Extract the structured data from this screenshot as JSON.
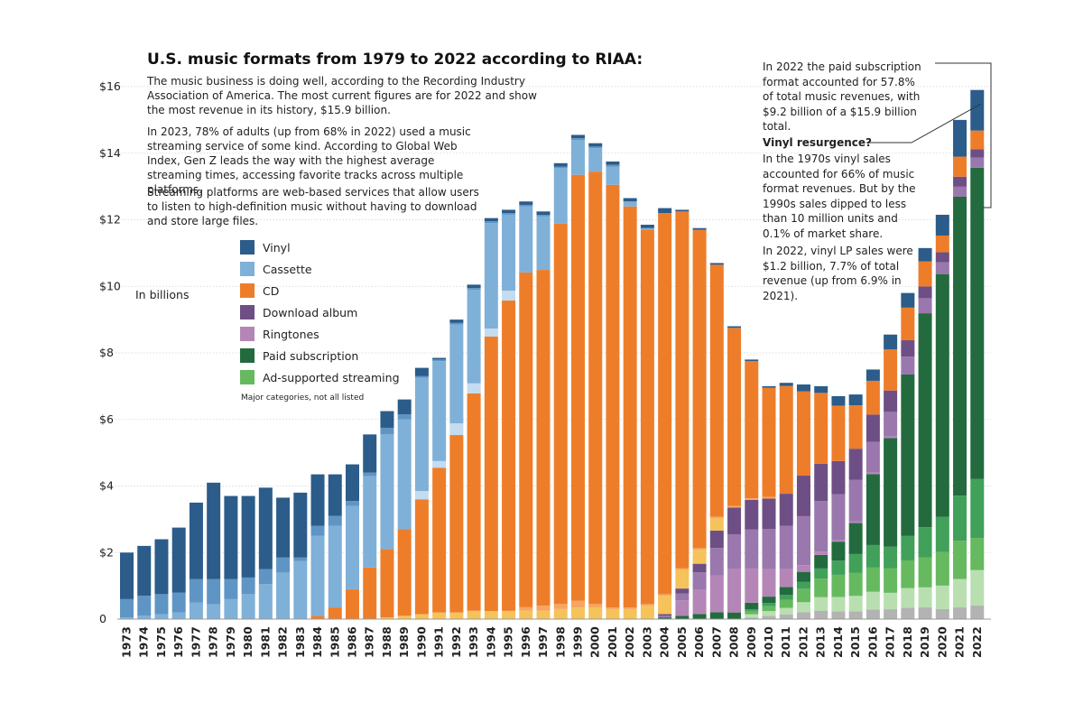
{
  "title": "U.S. music formats from 1979 to 2022 according to RIAA:",
  "paragraphs": [
    "The music business is doing well, according to the Recording Industry Association of America. The most current figures are for 2022 and show the most revenue in its history, $15.9 billion.",
    "In 2023, 78% of adults (up from 68% in 2022) used a music streaming service of some kind. According to Global Web Index, Gen Z leads the way with the highest average streaming times, accessing favorite tracks across multiple platforms.",
    "Streaming platforms are web-based services that allow users to listen to high-definition music without having to download and store large files."
  ],
  "unit_label": "In billions",
  "legend": {
    "items": [
      {
        "label": "Vinyl",
        "color": "#2b5c8a"
      },
      {
        "label": "Cassette",
        "color": "#7fb0d8"
      },
      {
        "label": "CD",
        "color": "#ee7d2a"
      },
      {
        "label": "Download album",
        "color": "#6e4f85"
      },
      {
        "label": "Ringtones",
        "color": "#b486b7"
      },
      {
        "label": "Paid subscription",
        "color": "#236b3e"
      },
      {
        "label": "Ad-supported streaming",
        "color": "#66b95f"
      }
    ],
    "note": "Major categories, not all listed"
  },
  "notes": {
    "paid_subscription": "In 2022 the paid subscription format accounted for 57.8% of total music revenues, with $9.2 billion of a $15.9 billion total.",
    "vinyl_heading": "Vinyl resurgence?",
    "vinyl_1970s": "In the 1970s vinyl sales accounted for 66% of music format revenues. But by the 1990s sales dipped to less than 10 million units and 0.1% of market share.",
    "vinyl_2022": "In 2022, vinyl LP sales were $1.2 billion, 7.7% of total revenue (up from 6.9% in 2021)."
  },
  "chart_data": {
    "type": "bar",
    "stacked": true,
    "title": "U.S. music formats from 1979 to 2022 according to RIAA:",
    "ylabel": "In billions",
    "ylim": [
      0,
      16
    ],
    "yticks": [
      0,
      2,
      4,
      6,
      8,
      10,
      12,
      14,
      16
    ],
    "ytick_labels": [
      "0",
      "$2",
      "$4",
      "$6",
      "$8",
      "$10",
      "$12",
      "$14",
      "$16"
    ],
    "categories": [
      "1973",
      "1974",
      "1975",
      "1976",
      "1977",
      "1978",
      "1979",
      "1980",
      "1981",
      "1982",
      "1983",
      "1984",
      "1985",
      "1986",
      "1987",
      "1988",
      "1989",
      "1990",
      "1991",
      "1992",
      "1993",
      "1994",
      "1995",
      "1996",
      "1997",
      "1998",
      "1999",
      "2000",
      "2001",
      "2002",
      "2003",
      "2004",
      "2005",
      "2006",
      "2007",
      "2008",
      "2009",
      "2010",
      "2011",
      "2012",
      "2013",
      "2014",
      "2015",
      "2016",
      "2017",
      "2018",
      "2019",
      "2020",
      "2021",
      "2022"
    ],
    "totals": [
      2.0,
      2.2,
      2.4,
      2.75,
      3.5,
      4.1,
      3.7,
      3.7,
      3.95,
      3.65,
      3.8,
      4.35,
      4.35,
      4.65,
      5.55,
      6.25,
      6.6,
      7.55,
      7.85,
      9.0,
      10.05,
      12.05,
      12.3,
      12.55,
      12.25,
      13.7,
      14.55,
      14.3,
      13.75,
      12.65,
      11.85,
      12.35,
      12.3,
      11.75,
      10.7,
      8.8,
      7.8,
      7.0,
      7.1,
      7.05,
      7.0,
      6.7,
      6.75,
      7.5,
      8.55,
      9.8,
      11.15,
      12.15,
      15.0,
      15.9
    ],
    "series": [
      {
        "name": "Other",
        "color": "#b3b3b3",
        "values": [
          0,
          0,
          0,
          0,
          0,
          0,
          0,
          0,
          0,
          0,
          0,
          0,
          0,
          0,
          0,
          0,
          0,
          0,
          0,
          0,
          0,
          0,
          0,
          0,
          0,
          0,
          0,
          0,
          0,
          0,
          0,
          0,
          0,
          0,
          0,
          0,
          0.05,
          0.1,
          0.15,
          0.2,
          0.25,
          0.25,
          0.25,
          0.3,
          0.3,
          0.35,
          0.35,
          0.3,
          0.35,
          0.4
        ]
      },
      {
        "name": "Ad-supported streaming light",
        "color": "#b9dfb1",
        "values": [
          0,
          0,
          0,
          0,
          0,
          0,
          0,
          0,
          0,
          0,
          0,
          0,
          0,
          0,
          0,
          0,
          0,
          0,
          0,
          0,
          0,
          0,
          0,
          0,
          0,
          0,
          0,
          0,
          0,
          0,
          0,
          0,
          0,
          0,
          0,
          0,
          0.1,
          0.15,
          0.2,
          0.3,
          0.4,
          0.45,
          0.5,
          0.55,
          0.5,
          0.6,
          0.6,
          0.7,
          0.85,
          1.05
        ]
      },
      {
        "name": "Ad-supported streaming",
        "color": "#66b95f",
        "values": [
          0,
          0,
          0,
          0,
          0,
          0,
          0,
          0,
          0,
          0,
          0,
          0,
          0,
          0,
          0,
          0,
          0,
          0,
          0,
          0,
          0,
          0,
          0,
          0,
          0,
          0,
          0,
          0,
          0,
          0,
          0,
          0,
          0,
          0,
          0,
          0,
          0.1,
          0.15,
          0.25,
          0.4,
          0.55,
          0.7,
          0.75,
          0.75,
          0.75,
          0.85,
          0.9,
          1.0,
          1.15,
          0.95
        ]
      },
      {
        "name": "Paid subscription mid",
        "color": "#41a05a",
        "values": [
          0,
          0,
          0,
          0,
          0,
          0,
          0,
          0,
          0,
          0,
          0,
          0,
          0,
          0,
          0,
          0,
          0,
          0,
          0,
          0,
          0,
          0,
          0,
          0,
          0,
          0,
          0,
          0,
          0,
          0,
          0,
          0,
          0,
          0,
          0,
          0,
          0.05,
          0.1,
          0.15,
          0.2,
          0.3,
          0.45,
          0.6,
          0.7,
          0.65,
          0.75,
          0.9,
          1.05,
          1.35,
          1.75
        ]
      },
      {
        "name": "Paid subscription",
        "color": "#236b3e",
        "values": [
          0,
          0,
          0,
          0,
          0,
          0,
          0,
          0,
          0,
          0,
          0,
          0,
          0,
          0,
          0,
          0,
          0,
          0,
          0,
          0,
          0,
          0,
          0,
          0,
          0,
          0,
          0,
          0,
          0,
          0.0,
          0.0,
          0.05,
          0.1,
          0.15,
          0.2,
          0.2,
          0.2,
          0.2,
          0.25,
          0.3,
          0.4,
          0.6,
          1.0,
          2.2,
          3.3,
          4.95,
          6.4,
          7.25,
          8.95,
          9.2
        ]
      },
      {
        "name": "Ringtones",
        "color": "#b486b7",
        "values": [
          0,
          0,
          0,
          0,
          0,
          0,
          0,
          0,
          0,
          0,
          0,
          0,
          0,
          0,
          0,
          0,
          0,
          0,
          0,
          0,
          0,
          0,
          0,
          0,
          0,
          0,
          0,
          0,
          0,
          0,
          0.0,
          0.0,
          0.45,
          0.7,
          1.05,
          1.3,
          1.05,
          0.85,
          0.55,
          0.2,
          0.1,
          0.05,
          0.05,
          0.05,
          0.05,
          0.0,
          0.0,
          0.0,
          0.0,
          0.0
        ]
      },
      {
        "name": "Download album light",
        "color": "#9a78ad",
        "values": [
          0,
          0,
          0,
          0,
          0,
          0,
          0,
          0,
          0,
          0,
          0,
          0,
          0,
          0,
          0,
          0,
          0,
          0,
          0,
          0,
          0,
          0,
          0,
          0,
          0,
          0,
          0,
          0,
          0,
          0,
          0,
          0.05,
          0.2,
          0.5,
          0.8,
          1.05,
          1.2,
          1.25,
          1.35,
          1.45,
          1.5,
          1.45,
          1.35,
          0.95,
          0.75,
          0.55,
          0.45,
          0.35,
          0.3,
          0.3
        ]
      },
      {
        "name": "Download album",
        "color": "#6e4f85",
        "values": [
          0,
          0,
          0,
          0,
          0,
          0,
          0,
          0,
          0,
          0,
          0,
          0,
          0,
          0,
          0,
          0,
          0,
          0,
          0,
          0,
          0,
          0,
          0,
          0,
          0,
          0,
          0,
          0,
          0,
          0,
          0.0,
          0.05,
          0.15,
          0.25,
          0.5,
          0.8,
          0.9,
          0.95,
          1.0,
          1.2,
          1.1,
          1.05,
          1.0,
          0.85,
          0.65,
          0.5,
          0.35,
          0.3,
          0.3,
          0.25
        ]
      },
      {
        "name": "Music video / other",
        "color": "#f5c35a",
        "values": [
          0,
          0,
          0,
          0,
          0,
          0,
          0,
          0,
          0,
          0,
          0,
          0,
          0,
          0,
          0,
          0.05,
          0.1,
          0.15,
          0.2,
          0.2,
          0.25,
          0.25,
          0.25,
          0.25,
          0.25,
          0.3,
          0.35,
          0.35,
          0.3,
          0.3,
          0.4,
          0.55,
          0.55,
          0.4,
          0.35,
          0.0,
          0.0,
          0.0,
          0.0,
          0.0,
          0.0,
          0.0,
          0.0,
          0.0,
          0.0,
          0.0,
          0.0,
          0.0,
          0.0,
          0.0
        ]
      },
      {
        "name": "CD single / light",
        "color": "#f6a660",
        "values": [
          0,
          0,
          0,
          0,
          0,
          0,
          0,
          0,
          0,
          0,
          0,
          0,
          0,
          0,
          0,
          0,
          0,
          0,
          0,
          0,
          0,
          0,
          0,
          0.1,
          0.15,
          0.15,
          0.2,
          0.1,
          0.05,
          0.05,
          0.05,
          0.05,
          0.05,
          0.05,
          0.05,
          0.05,
          0.05,
          0.05,
          0.0,
          0.0,
          0.0,
          0.0,
          0.0,
          0.0,
          0.0,
          0.0,
          0.0,
          0.0,
          0.0,
          0.0
        ]
      },
      {
        "name": "CD",
        "color": "#ee7d2a",
        "values": [
          0,
          0,
          0,
          0,
          0,
          0,
          0,
          0,
          0,
          0,
          0,
          0.1,
          0.35,
          0.9,
          1.55,
          2.05,
          2.6,
          3.45,
          4.35,
          5.3,
          6.5,
          8.45,
          9.4,
          9.9,
          10.05,
          11.35,
          12.8,
          12.95,
          12.7,
          12.05,
          11.2,
          11.45,
          10.5,
          9.2,
          7.25,
          5.35,
          4.2,
          3.4,
          3.35,
          2.5,
          2.1,
          1.75,
          1.4,
          1.05,
          1.25,
          1.0,
          0.75,
          0.5,
          0.6,
          0.55
        ]
      },
      {
        "name": "Cassette light",
        "color": "#c3dcef",
        "values": [
          0,
          0,
          0,
          0,
          0,
          0,
          0,
          0,
          0,
          0,
          0,
          0,
          0,
          0,
          0,
          0,
          0,
          0.25,
          0.2,
          0.35,
          0.3,
          0.25,
          0.3,
          0.0,
          0.0,
          0.0,
          0.0,
          0.0,
          0.0,
          0.0,
          0,
          0,
          0,
          0,
          0,
          0,
          0,
          0,
          0,
          0,
          0,
          0,
          0,
          0,
          0,
          0,
          0,
          0,
          0,
          0
        ]
      },
      {
        "name": "Cassette",
        "color": "#7fb0d8",
        "values": [
          0.05,
          0.1,
          0.15,
          0.2,
          0.5,
          0.45,
          0.6,
          0.75,
          1.05,
          1.4,
          1.75,
          2.4,
          2.45,
          2.5,
          2.75,
          3.45,
          3.3,
          3.4,
          3.0,
          2.95,
          2.8,
          3.25,
          2.3,
          1.95,
          1.6,
          1.65,
          1.05,
          0.7,
          0.55,
          0.15,
          0.05,
          0,
          0,
          0,
          0,
          0,
          0,
          0,
          0,
          0,
          0,
          0,
          0,
          0,
          0,
          0,
          0,
          0,
          0,
          0
        ]
      },
      {
        "name": "Cassette (8-track) / misc",
        "color": "#5f95c4",
        "values": [
          0.55,
          0.6,
          0.6,
          0.6,
          0.7,
          0.75,
          0.6,
          0.5,
          0.45,
          0.45,
          0.1,
          0.3,
          0.3,
          0.15,
          0.1,
          0.2,
          0.15,
          0.05,
          0.05,
          0.05,
          0.05,
          0.05,
          0.05,
          0.05,
          0.05,
          0.05,
          0.05,
          0.05,
          0.05,
          0.0,
          0.0,
          0.0,
          0.0,
          0.0,
          0.0,
          0.0,
          0.0,
          0.0,
          0.0,
          0.0,
          0.0,
          0.0,
          0.0,
          0.0,
          0.0,
          0.0,
          0.0,
          0.0,
          0.0,
          0.0
        ]
      },
      {
        "name": "Vinyl",
        "color": "#2b5c8a",
        "values": [
          1.4,
          1.5,
          1.65,
          1.95,
          2.3,
          2.9,
          2.5,
          2.45,
          2.45,
          1.8,
          1.95,
          1.55,
          1.25,
          1.1,
          1.15,
          0.5,
          0.45,
          0.25,
          0.05,
          0.1,
          0.1,
          0.1,
          0.1,
          0.1,
          0.1,
          0.1,
          0.1,
          0.1,
          0.1,
          0.1,
          0.1,
          0.15,
          0.05,
          0.05,
          0.05,
          0.05,
          0.05,
          0.05,
          0.1,
          0.2,
          0.2,
          0.3,
          0.35,
          0.35,
          0.45,
          0.45,
          0.4,
          0.62,
          1.1,
          1.2
        ]
      }
    ]
  }
}
